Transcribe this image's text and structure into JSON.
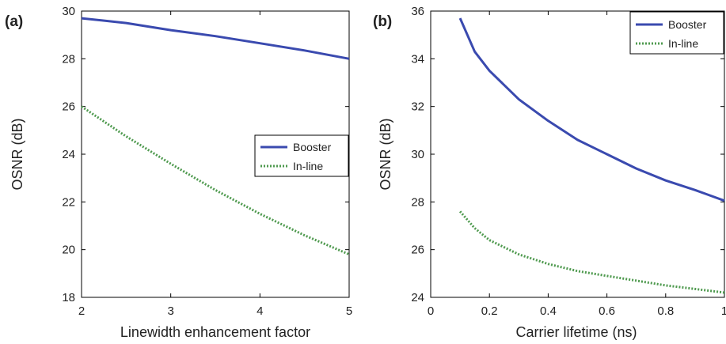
{
  "colors": {
    "booster": "#3a4aaf",
    "inline": "#4f9a4f"
  },
  "chart_data": [
    {
      "type": "line",
      "panel_label": "(a)",
      "title": "",
      "xlabel": "Linewidth enhancement factor",
      "ylabel": "OSNR (dB)",
      "xlim": [
        2,
        5
      ],
      "ylim": [
        18,
        30
      ],
      "xticks": [
        2,
        3,
        4,
        5
      ],
      "yticks": [
        18,
        20,
        22,
        24,
        26,
        28,
        30
      ],
      "grid": false,
      "legend_position": "right",
      "series": [
        {
          "name": "Booster",
          "style": "solid",
          "x": [
            2,
            2.5,
            3,
            3.5,
            4,
            4.5,
            5
          ],
          "y": [
            29.7,
            29.5,
            29.2,
            28.95,
            28.65,
            28.35,
            28.0
          ]
        },
        {
          "name": "In-line",
          "style": "dotted",
          "x": [
            2,
            2.5,
            3,
            3.5,
            4,
            4.5,
            5
          ],
          "y": [
            26.0,
            24.75,
            23.6,
            22.5,
            21.5,
            20.6,
            19.8
          ]
        }
      ]
    },
    {
      "type": "line",
      "panel_label": "(b)",
      "title": "",
      "xlabel": "Carrier lifetime (ns)",
      "ylabel": "OSNR (dB)",
      "xlim": [
        0,
        1
      ],
      "ylim": [
        24,
        36
      ],
      "xticks": [
        0,
        0.2,
        0.4,
        0.6,
        0.8,
        1
      ],
      "yticks": [
        24,
        26,
        28,
        30,
        32,
        34,
        36
      ],
      "grid": false,
      "legend_position": "top-right",
      "series": [
        {
          "name": "Booster",
          "style": "solid",
          "x": [
            0.1,
            0.15,
            0.2,
            0.3,
            0.4,
            0.5,
            0.6,
            0.7,
            0.8,
            0.9,
            1.0
          ],
          "y": [
            35.7,
            34.3,
            33.5,
            32.3,
            31.4,
            30.6,
            30.0,
            29.4,
            28.9,
            28.5,
            28.05
          ]
        },
        {
          "name": "In-line",
          "style": "dotted",
          "x": [
            0.1,
            0.15,
            0.2,
            0.3,
            0.4,
            0.5,
            0.6,
            0.7,
            0.8,
            0.9,
            1.0
          ],
          "y": [
            27.6,
            26.9,
            26.4,
            25.8,
            25.4,
            25.1,
            24.9,
            24.7,
            24.5,
            24.35,
            24.2
          ]
        }
      ]
    }
  ]
}
